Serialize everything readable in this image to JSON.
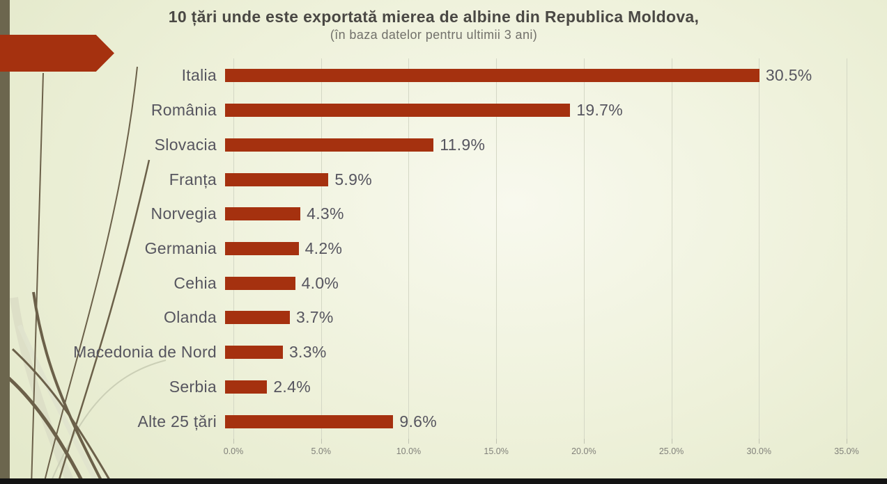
{
  "slide": {
    "title": "10 țări unde este exportată mierea de albine din Republica Moldova,",
    "subtitle": "(în baza datelor pentru ultimii 3 ani)"
  },
  "chart_data": {
    "type": "bar",
    "orientation": "horizontal",
    "title": "10 țări unde este exportată mierea de albine din Republica Moldova,",
    "subtitle": "(în baza datelor pentru ultimii 3 ani)",
    "categories": [
      "Italia",
      "România",
      "Slovacia",
      "Franța",
      "Norvegia",
      "Germania",
      "Cehia",
      "Olanda",
      "Macedonia de Nord",
      "Serbia",
      "Alte 25 țări"
    ],
    "values": [
      30.5,
      19.7,
      11.9,
      5.9,
      4.3,
      4.2,
      4.0,
      3.7,
      3.3,
      2.4,
      9.6
    ],
    "value_labels": [
      "30.5%",
      "19.7%",
      "11.9%",
      "5.9%",
      "4.3%",
      "4.2%",
      "4.0%",
      "3.7%",
      "3.3%",
      "2.4%",
      "9.6%"
    ],
    "x_ticks": [
      "0.0%",
      "5.0%",
      "10.0%",
      "15.0%",
      "20.0%",
      "25.0%",
      "30.0%",
      "35.0%"
    ],
    "x_tick_values": [
      0,
      5,
      10,
      15,
      20,
      25,
      30,
      35
    ],
    "xlim": [
      0,
      35
    ],
    "grid": true,
    "legend": false,
    "data_labels": true
  },
  "colors": {
    "bar": "#A5310F",
    "accent_arrow": "#A5310F",
    "left_strip": "#6C664E",
    "bottom_bar": "#131313",
    "title_text": "#4A4844",
    "subtitle_text": "#71706A",
    "label_text": "#56555F",
    "axis_text": "#80807A",
    "gridline": "#D4D7C5",
    "stem_dark": "#6B6049",
    "stem_light": "#DDE0C9"
  }
}
